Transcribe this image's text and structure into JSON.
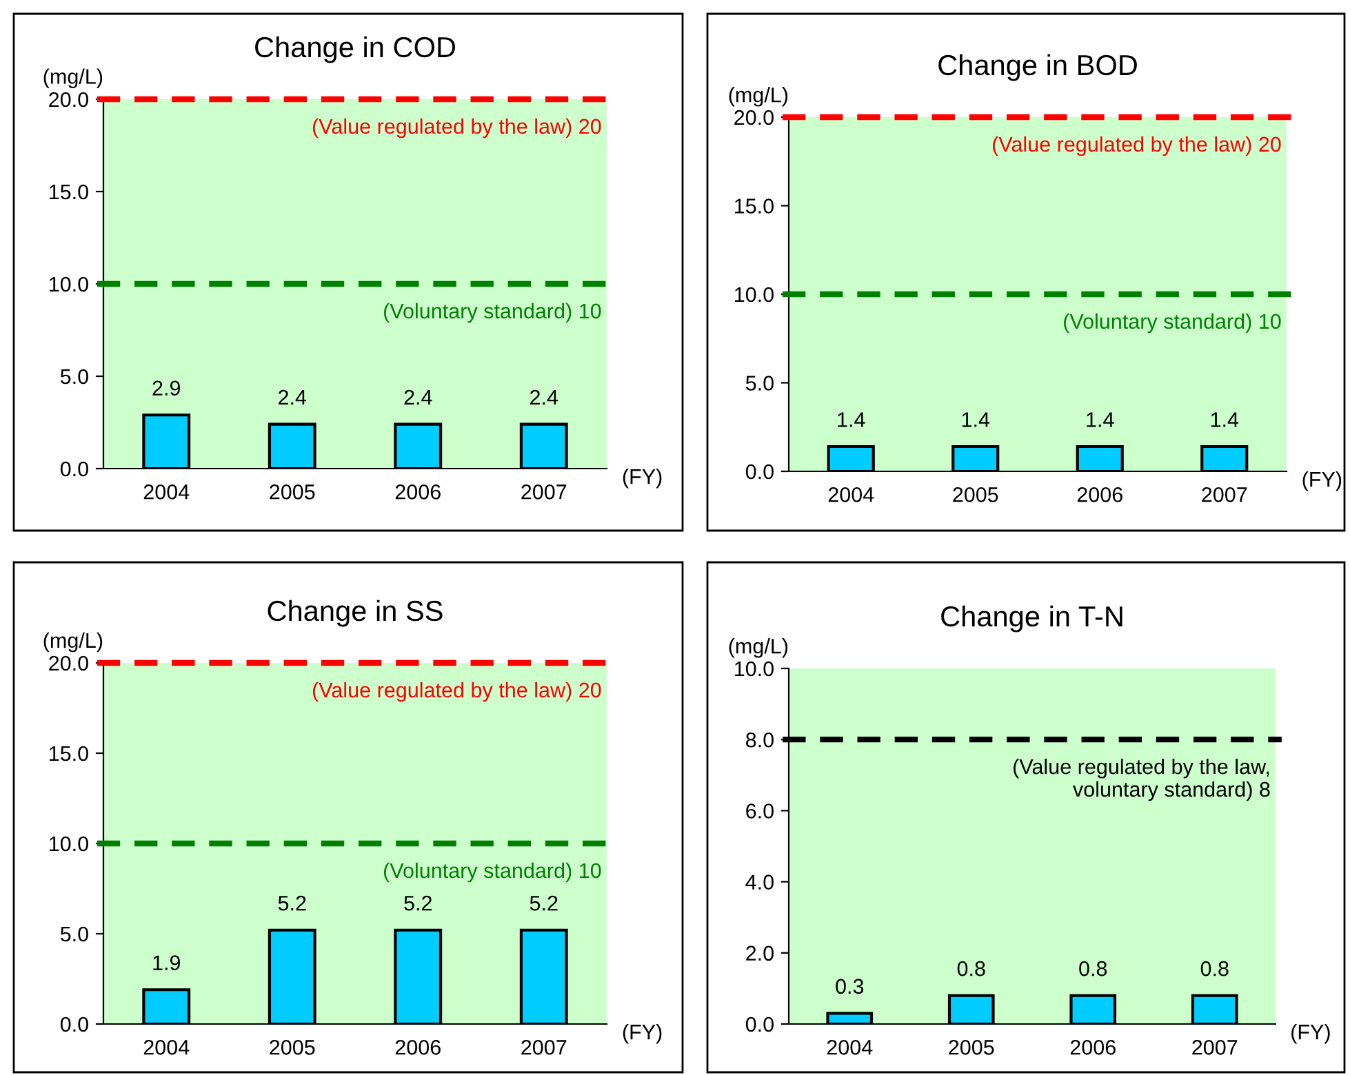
{
  "chart_data": [
    {
      "type": "bar",
      "title": "Change in COD",
      "ylabel": "(mg/L)",
      "xlabel": "(FY)",
      "categories": [
        "2004",
        "2005",
        "2006",
        "2007"
      ],
      "values": [
        2.9,
        2.4,
        2.4,
        2.4
      ],
      "color": "#00ccff",
      "ylim": [
        0,
        20
      ],
      "yticks": [
        {
          "value": 0,
          "label": "0.0"
        },
        {
          "value": 5,
          "label": "5.0"
        },
        {
          "value": 10,
          "label": "10.0"
        },
        {
          "value": 15,
          "label": "15.0"
        },
        {
          "value": 20,
          "label": "20.0"
        }
      ],
      "data_labels": true,
      "ref_lines": [
        {
          "axis": "y",
          "value": 20,
          "label": "(Value regulated by the law) 20",
          "color": "#ff0000",
          "line_style": "dashed"
        },
        {
          "axis": "y",
          "value": 10,
          "label": "(Voluntary standard) 10",
          "color": "#008000",
          "line_style": "dashed"
        }
      ]
    },
    {
      "type": "bar",
      "title": "Change in BOD",
      "ylabel": "(mg/L)",
      "xlabel": "(FY)",
      "categories": [
        "2004",
        "2005",
        "2006",
        "2007"
      ],
      "values": [
        1.4,
        1.4,
        1.4,
        1.4
      ],
      "color": "#00ccff",
      "ylim": [
        0,
        20
      ],
      "yticks": [
        {
          "value": 0,
          "label": "0.0"
        },
        {
          "value": 5,
          "label": "5.0"
        },
        {
          "value": 10,
          "label": "10.0"
        },
        {
          "value": 15,
          "label": "15.0"
        },
        {
          "value": 20,
          "label": "20.0"
        }
      ],
      "data_labels": true,
      "ref_lines": [
        {
          "axis": "y",
          "value": 20,
          "label": "(Value regulated by the law) 20",
          "color": "#ff0000",
          "line_style": "dashed"
        },
        {
          "axis": "y",
          "value": 10,
          "label": "(Voluntary standard) 10",
          "color": "#008000",
          "line_style": "dashed"
        }
      ]
    },
    {
      "type": "bar",
      "title": "Change in SS",
      "ylabel": "(mg/L)",
      "xlabel": "(FY)",
      "categories": [
        "2004",
        "2005",
        "2006",
        "2007"
      ],
      "values": [
        1.9,
        5.2,
        5.2,
        5.2
      ],
      "color": "#00ccff",
      "ylim": [
        0,
        20
      ],
      "yticks": [
        {
          "value": 0,
          "label": "0.0"
        },
        {
          "value": 5,
          "label": "5.0"
        },
        {
          "value": 10,
          "label": "10.0"
        },
        {
          "value": 15,
          "label": "15.0"
        },
        {
          "value": 20,
          "label": "20.0"
        }
      ],
      "data_labels": true,
      "ref_lines": [
        {
          "axis": "y",
          "value": 20,
          "label": "(Value regulated by the law) 20",
          "color": "#ff0000",
          "line_style": "dashed"
        },
        {
          "axis": "y",
          "value": 10,
          "label": "(Voluntary standard) 10",
          "color": "#008000",
          "line_style": "dashed"
        }
      ]
    },
    {
      "type": "bar",
      "title": "Change in T-N",
      "ylabel": "(mg/L)",
      "xlabel": "(FY)",
      "categories": [
        "2004",
        "2005",
        "2006",
        "2007"
      ],
      "values": [
        0.3,
        0.8,
        0.8,
        0.8
      ],
      "color": "#00ccff",
      "ylim": [
        0,
        10
      ],
      "yticks": [
        {
          "value": 0,
          "label": "0.0"
        },
        {
          "value": 2,
          "label": "2.0"
        },
        {
          "value": 4,
          "label": "4.0"
        },
        {
          "value": 6,
          "label": "6.0"
        },
        {
          "value": 8,
          "label": "8.0"
        },
        {
          "value": 10,
          "label": "10.0"
        }
      ],
      "data_labels": true,
      "ref_lines": [
        {
          "axis": "y",
          "value": 8,
          "label": "(Value regulated by the law,\nvoluntary standard) 8",
          "color": "#000000",
          "line_style": "dashed"
        }
      ]
    }
  ]
}
